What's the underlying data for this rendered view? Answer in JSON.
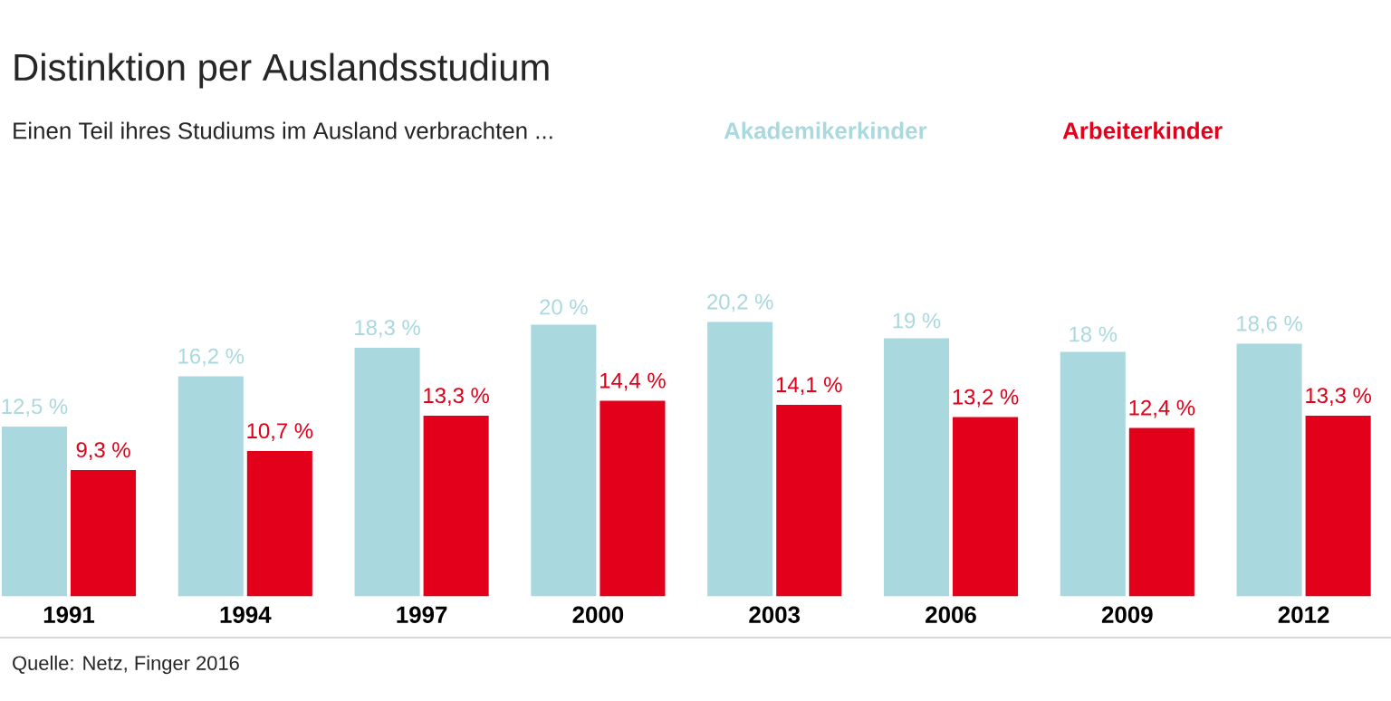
{
  "chart_data": {
    "type": "bar",
    "title": "Distinktion per Auslandsstudium",
    "subtitle": "Einen Teil ihres Studiums im Ausland verbrachten ...",
    "categories": [
      "1991",
      "1994",
      "1997",
      "2000",
      "2003",
      "2006",
      "2009",
      "2012"
    ],
    "series": [
      {
        "name": "Akademikerkinder",
        "color": "#a9d9df",
        "values": [
          12.5,
          16.2,
          18.3,
          20,
          20.2,
          19,
          18,
          18.6
        ],
        "value_labels": [
          "12,5 %",
          "16,2 %",
          "18,3 %",
          "20 %",
          "20,2 %",
          "19 %",
          "18 %",
          "18,6 %"
        ]
      },
      {
        "name": "Arbeiterkinder",
        "color": "#e2001a",
        "values": [
          9.3,
          10.7,
          13.3,
          14.4,
          14.1,
          13.2,
          12.4,
          13.3
        ],
        "value_labels": [
          "9,3 %",
          "10,7 %",
          "13,3 %",
          "14,4 %",
          "14,1 %",
          "13,2 %",
          "12,4 %",
          "13,3 %"
        ]
      }
    ],
    "legend": "top right",
    "annotations": [
      "Quelle: Netz, Finger 2016"
    ]
  }
}
